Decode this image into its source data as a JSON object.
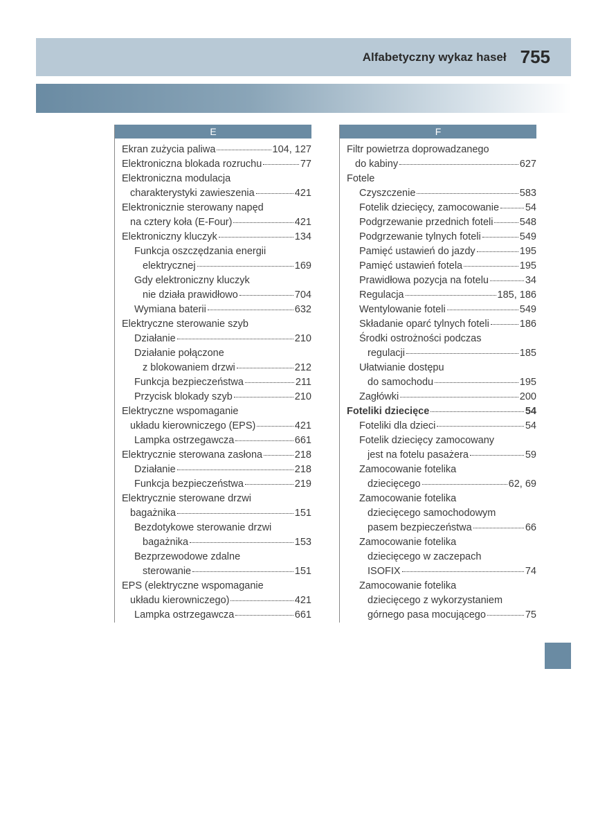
{
  "header": {
    "title": "Alfabetyczny wykaz haseł",
    "page": "755"
  },
  "colors": {
    "band": "#b8c9d6",
    "accent": "#6a8ba3",
    "text": "#3a3a3a"
  },
  "columns": [
    {
      "letter": "E",
      "entries": [
        {
          "lvl": 1,
          "text": "Ekran zużycia paliwa",
          "page": "104, 127"
        },
        {
          "lvl": 1,
          "text": "Elektroniczna blokada rozruchu",
          "page": "77"
        },
        {
          "lvl": 1,
          "text": "Elektroniczna modulacja",
          "cont": true
        },
        {
          "lvl": 1,
          "text": "charakterystyki zawieszenia",
          "page": "421",
          "pad": true
        },
        {
          "lvl": 1,
          "text": "Elektronicznie sterowany napęd",
          "cont": true
        },
        {
          "lvl": 1,
          "text": "na cztery koła (E-Four)",
          "page": "421",
          "pad": true
        },
        {
          "lvl": 1,
          "text": "Elektroniczny kluczyk",
          "page": "134"
        },
        {
          "lvl": 2,
          "text": "Funkcja oszczędzania energii",
          "cont": true
        },
        {
          "lvl": 2,
          "text": "elektrycznej",
          "page": "169",
          "pad": true
        },
        {
          "lvl": 2,
          "text": "Gdy elektroniczny kluczyk",
          "cont": true
        },
        {
          "lvl": 2,
          "text": "nie działa prawidłowo",
          "page": "704",
          "pad": true
        },
        {
          "lvl": 2,
          "text": "Wymiana baterii",
          "page": "632"
        },
        {
          "lvl": 1,
          "text": "Elektryczne sterowanie szyb",
          "cont": true,
          "bold": false
        },
        {
          "lvl": 2,
          "text": "Działanie",
          "page": "210"
        },
        {
          "lvl": 2,
          "text": "Działanie połączone",
          "cont": true
        },
        {
          "lvl": 2,
          "text": "z blokowaniem drzwi",
          "page": "212",
          "pad": true
        },
        {
          "lvl": 2,
          "text": "Funkcja bezpieczeństwa",
          "page": "211"
        },
        {
          "lvl": 2,
          "text": "Przycisk blokady szyb",
          "page": "210"
        },
        {
          "lvl": 1,
          "text": "Elektryczne wspomaganie",
          "cont": true
        },
        {
          "lvl": 1,
          "text": "układu kierowniczego (EPS)",
          "page": "421",
          "pad": true
        },
        {
          "lvl": 2,
          "text": "Lampka ostrzegawcza",
          "page": "661"
        },
        {
          "lvl": 1,
          "text": "Elektrycznie sterowana zasłona",
          "page": "218"
        },
        {
          "lvl": 2,
          "text": "Działanie",
          "page": "218"
        },
        {
          "lvl": 2,
          "text": "Funkcja bezpieczeństwa",
          "page": "219"
        },
        {
          "lvl": 1,
          "text": "Elektrycznie sterowane drzwi",
          "cont": true
        },
        {
          "lvl": 1,
          "text": "bagażnika",
          "page": "151",
          "pad": true
        },
        {
          "lvl": 2,
          "text": "Bezdotykowe sterowanie drzwi",
          "cont": true
        },
        {
          "lvl": 2,
          "text": "bagażnika",
          "page": "153",
          "pad": true
        },
        {
          "lvl": 2,
          "text": "Bezprzewodowe zdalne",
          "cont": true
        },
        {
          "lvl": 2,
          "text": "sterowanie",
          "page": "151",
          "pad": true
        },
        {
          "lvl": 1,
          "text": "EPS (elektryczne wspomaganie",
          "cont": true
        },
        {
          "lvl": 1,
          "text": "układu kierowniczego)",
          "page": "421",
          "pad": true
        },
        {
          "lvl": 2,
          "text": "Lampka ostrzegawcza",
          "page": "661"
        }
      ]
    },
    {
      "letter": "F",
      "entries": [
        {
          "lvl": 1,
          "text": "Filtr powietrza doprowadzanego",
          "cont": true
        },
        {
          "lvl": 1,
          "text": "do kabiny",
          "page": "627",
          "pad": true
        },
        {
          "lvl": 1,
          "text": "Fotele",
          "cont": true
        },
        {
          "lvl": 2,
          "text": "Czyszczenie",
          "page": "583"
        },
        {
          "lvl": 2,
          "text": "Fotelik dziecięcy, zamocowanie",
          "page": "54"
        },
        {
          "lvl": 2,
          "text": "Podgrzewanie przednich foteli",
          "page": "548"
        },
        {
          "lvl": 2,
          "text": "Podgrzewanie tylnych foteli",
          "page": "549"
        },
        {
          "lvl": 2,
          "text": "Pamięć ustawień do jazdy",
          "page": "195"
        },
        {
          "lvl": 2,
          "text": "Pamięć ustawień fotela",
          "page": "195"
        },
        {
          "lvl": 2,
          "text": "Prawidłowa pozycja na fotelu",
          "page": "34"
        },
        {
          "lvl": 2,
          "text": "Regulacja",
          "page": "185, 186"
        },
        {
          "lvl": 2,
          "text": "Wentylowanie foteli",
          "page": "549"
        },
        {
          "lvl": 2,
          "text": "Składanie oparć tylnych foteli",
          "page": "186"
        },
        {
          "lvl": 2,
          "text": "Środki ostrożności podczas",
          "cont": true
        },
        {
          "lvl": 2,
          "text": "regulacji",
          "page": "185",
          "pad": true
        },
        {
          "lvl": 2,
          "text": "Ułatwianie dostępu",
          "cont": true
        },
        {
          "lvl": 2,
          "text": "do samochodu",
          "page": "195",
          "pad": true
        },
        {
          "lvl": 2,
          "text": "Zagłówki",
          "page": "200"
        },
        {
          "lvl": 1,
          "text": "Foteliki dziecięce",
          "page": "54",
          "bold": true
        },
        {
          "lvl": 2,
          "text": "Foteliki dla dzieci",
          "page": "54"
        },
        {
          "lvl": 2,
          "text": "Fotelik dziecięcy zamocowany",
          "cont": true
        },
        {
          "lvl": 2,
          "text": "jest na fotelu pasażera",
          "page": "59",
          "pad": true
        },
        {
          "lvl": 2,
          "text": "Zamocowanie fotelika",
          "cont": true
        },
        {
          "lvl": 2,
          "text": "dziecięcego",
          "page": "62, 69",
          "pad": true
        },
        {
          "lvl": 2,
          "text": "Zamocowanie fotelika",
          "cont": true
        },
        {
          "lvl": 2,
          "text": "dziecięcego samochodowym",
          "cont": true,
          "pad": true
        },
        {
          "lvl": 2,
          "text": "pasem bezpieczeństwa",
          "page": "66",
          "pad": true
        },
        {
          "lvl": 2,
          "text": "Zamocowanie fotelika",
          "cont": true
        },
        {
          "lvl": 2,
          "text": "dziecięcego w zaczepach",
          "cont": true,
          "pad": true
        },
        {
          "lvl": 2,
          "text": "ISOFIX",
          "page": "74",
          "pad": true
        },
        {
          "lvl": 2,
          "text": "Zamocowanie fotelika",
          "cont": true
        },
        {
          "lvl": 2,
          "text": "dziecięcego z wykorzystaniem",
          "cont": true,
          "pad": true
        },
        {
          "lvl": 2,
          "text": "górnego pasa mocującego",
          "page": "75",
          "pad": true
        }
      ]
    }
  ]
}
